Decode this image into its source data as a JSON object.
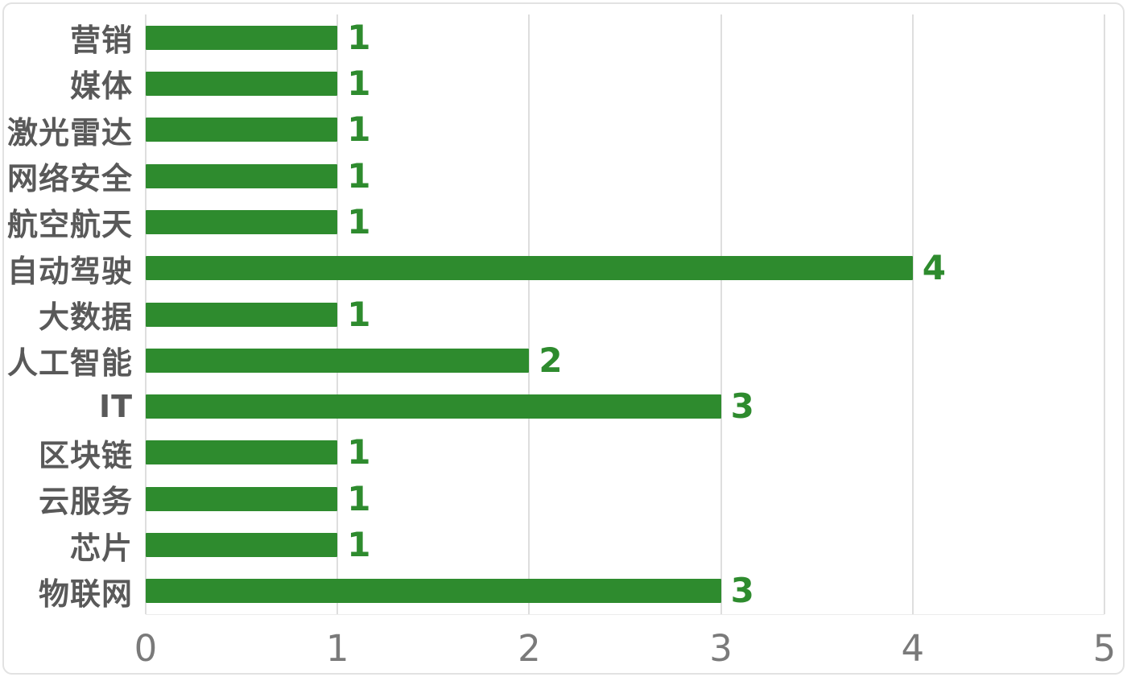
{
  "chart_data": {
    "type": "bar",
    "orientation": "horizontal",
    "title": "",
    "xlabel": "",
    "ylabel": "",
    "categories": [
      "营销",
      "媒体",
      "激光雷达",
      "网络安全",
      "航空航天",
      "自动驾驶",
      "大数据",
      "人工智能",
      "IT",
      "区块链",
      "云服务",
      "芯片",
      "物联网"
    ],
    "values": [
      1,
      1,
      1,
      1,
      1,
      4,
      1,
      2,
      3,
      1,
      1,
      1,
      3
    ],
    "data_labels": [
      1,
      1,
      1,
      1,
      1,
      4,
      1,
      2,
      3,
      1,
      1,
      1,
      3
    ],
    "xlim": [
      0,
      5
    ],
    "xticks": [
      0,
      1,
      2,
      3,
      4,
      5
    ],
    "grid": "vertical-only",
    "legend": "none",
    "colors": {
      "bar": "#2e8b2e",
      "value_label": "#2e8b2e",
      "category_label": "#595959",
      "axis_tick_label": "#7a7a7a",
      "gridline": "#dedede",
      "background": "#ffffff"
    }
  }
}
